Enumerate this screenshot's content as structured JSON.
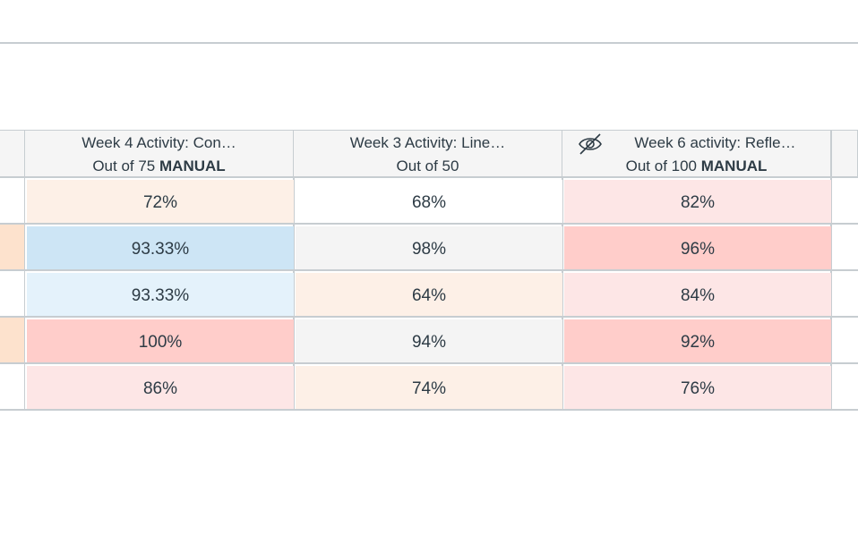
{
  "columns": [
    {
      "title": "Week 4 Activity: Con…",
      "out_of": "Out of 75",
      "tag": "MANUAL",
      "hidden_icon": false
    },
    {
      "title": "Week 3 Activity: Line…",
      "out_of": "Out of 50",
      "tag": "",
      "hidden_icon": false
    },
    {
      "title": "Week 6 activity: Refle…",
      "out_of": "Out of 100",
      "tag": "MANUAL",
      "hidden_icon": true
    }
  ],
  "rows": [
    {
      "stub_color": "#ffffff",
      "cells": [
        {
          "value": "72%",
          "bg": "#fdf0e7"
        },
        {
          "value": "68%",
          "bg": "#ffffff"
        },
        {
          "value": "82%",
          "bg": "#fde6e6"
        }
      ]
    },
    {
      "stub_color": "#fde2cd",
      "cells": [
        {
          "value": "93.33%",
          "bg": "#cde5f5"
        },
        {
          "value": "98%",
          "bg": "#f4f4f4"
        },
        {
          "value": "96%",
          "bg": "#ffcdca"
        }
      ]
    },
    {
      "stub_color": "#ffffff",
      "cells": [
        {
          "value": "93.33%",
          "bg": "#e4f2fb"
        },
        {
          "value": "64%",
          "bg": "#fdf0e7"
        },
        {
          "value": "84%",
          "bg": "#fde6e6"
        }
      ]
    },
    {
      "stub_color": "#fde2cd",
      "cells": [
        {
          "value": "100%",
          "bg": "#ffcdca"
        },
        {
          "value": "94%",
          "bg": "#f4f4f4"
        },
        {
          "value": "92%",
          "bg": "#ffcdca"
        }
      ]
    },
    {
      "stub_color": "#ffffff",
      "cells": [
        {
          "value": "86%",
          "bg": "#fde6e6"
        },
        {
          "value": "74%",
          "bg": "#fdf0e7"
        },
        {
          "value": "76%",
          "bg": "#fde6e6"
        }
      ]
    }
  ],
  "icons": {
    "hidden_column": "eye-slash-icon"
  }
}
